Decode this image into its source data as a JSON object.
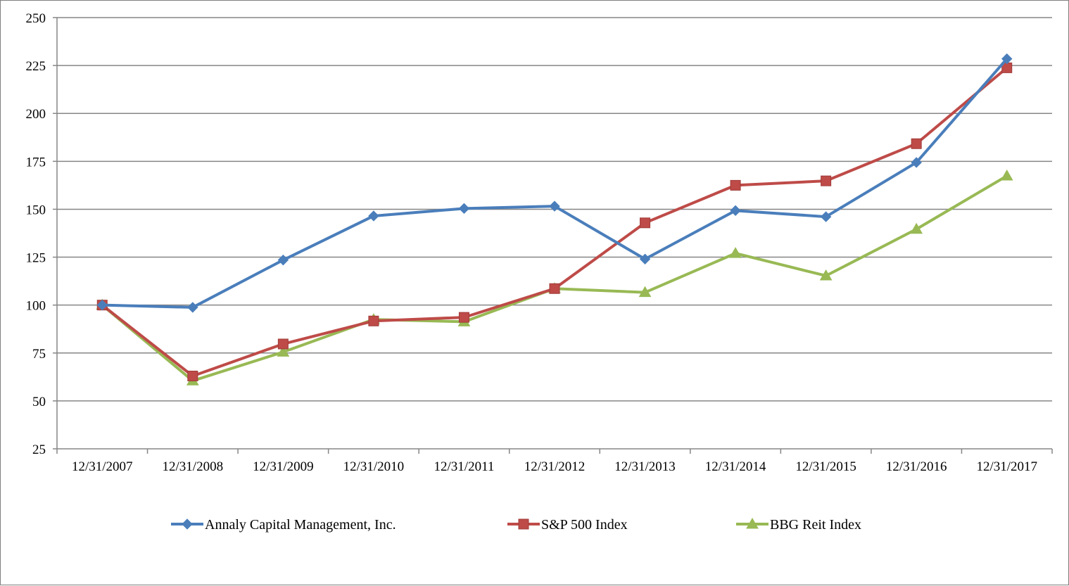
{
  "chart_data": {
    "type": "line",
    "title": "",
    "xlabel": "",
    "ylabel": "",
    "categories": [
      "12/31/2007",
      "12/31/2008",
      "12/31/2009",
      "12/31/2010",
      "12/31/2011",
      "12/31/2012",
      "12/31/2013",
      "12/31/2014",
      "12/31/2015",
      "12/31/2016",
      "12/31/2017"
    ],
    "ylim": [
      25,
      250
    ],
    "yticks": [
      25,
      50,
      75,
      100,
      125,
      150,
      175,
      200,
      225,
      250
    ],
    "grid": true,
    "legend": "bottom",
    "series": [
      {
        "name": "Annaly Capital Management, Inc.",
        "color": "#4a7ebb",
        "marker": "diamond",
        "values": [
          100,
          98.8,
          123.5,
          146.5,
          150.4,
          151.6,
          124.0,
          149.3,
          146.1,
          174.4,
          228.5
        ]
      },
      {
        "name": "S&P 500 Index",
        "color": "#be4b48",
        "marker": "square",
        "values": [
          100,
          63.0,
          79.7,
          91.7,
          93.6,
          108.6,
          142.9,
          162.5,
          164.8,
          184.2,
          223.8
        ]
      },
      {
        "name": "BBG Reit Index",
        "color": "#98b954",
        "marker": "triangle",
        "values": [
          100,
          60.5,
          75.5,
          92.5,
          91.3,
          108.6,
          106.6,
          127.0,
          115.3,
          139.6,
          167.4
        ]
      }
    ]
  }
}
